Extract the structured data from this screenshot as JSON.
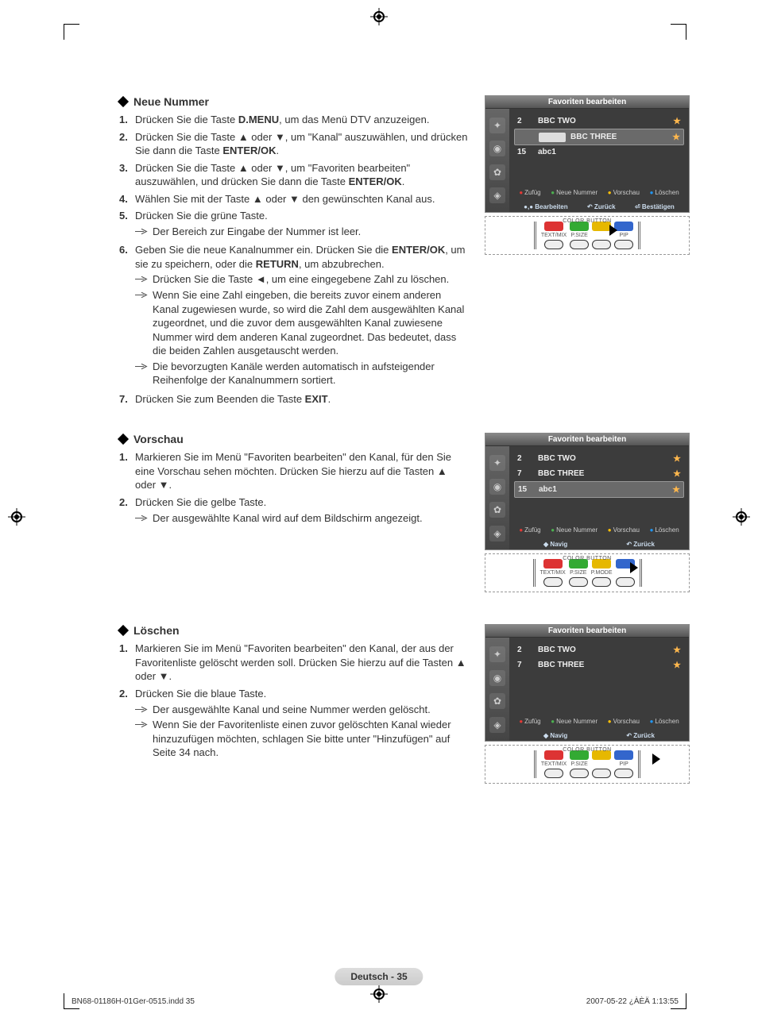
{
  "sections": {
    "s1": {
      "title": "Neue Nummer",
      "steps": {
        "1": "Drücken Sie die Taste <b>D.MENU</b>, um das Menü DTV anzuzeigen.",
        "2": "Drücken Sie die Taste ▲ oder ▼, um \"Kanal\" auszuwählen, und drücken Sie dann die Taste <b>ENTER/OK</b>.",
        "3": "Drücken Sie die Taste ▲ oder ▼, um \"Favoriten bearbeiten\" auszuwählen, und drücken Sie dann die Taste <b>ENTER/OK</b>.",
        "4": "Wählen Sie mit der Taste ▲ oder ▼ den gewünschten Kanal aus.",
        "5": "Drücken Sie die grüne Taste.",
        "5a": "Der Bereich zur Eingabe der Nummer ist leer.",
        "6": "Geben Sie die neue Kanalnummer ein. Drücken Sie die <b>ENTER/OK</b>, um sie zu speichern, oder die <b>RETURN</b>, um abzubrechen.",
        "6a": "Drücken Sie die Taste ◄, um eine eingegebene Zahl zu löschen.",
        "6b": "Wenn Sie eine Zahl eingeben, die bereits zuvor einem anderen Kanal zugewiesen wurde, so wird die Zahl dem ausgewählten Kanal zugeordnet, und die zuvor dem ausgewählten Kanal zuwiesene Nummer wird dem anderen Kanal zugeordnet. Das bedeutet, dass die beiden Zahlen ausgetauscht werden.",
        "6c": "Die bevorzugten Kanäle werden automatisch in aufsteigender Reihenfolge der Kanalnummern sortiert.",
        "7": "Drücken Sie zum Beenden die Taste <b>EXIT</b>."
      }
    },
    "s2": {
      "title": "Vorschau",
      "steps": {
        "1": "Markieren Sie im Menü \"Favoriten bearbeiten\" den Kanal, für den Sie eine Vorschau sehen möchten. Drücken Sie hierzu auf die Tasten ▲ oder ▼.",
        "2": "Drücken Sie die gelbe Taste.",
        "2a": "Der ausgewählte Kanal wird auf dem Bildschirm angezeigt."
      }
    },
    "s3": {
      "title": "Löschen",
      "steps": {
        "1": "Markieren Sie im Menü \"Favoriten bearbeiten\" den Kanal, der aus der Favoritenliste gelöscht werden soll. Drücken Sie hierzu auf die Tasten ▲ oder ▼.",
        "2": "Drücken Sie die blaue Taste.",
        "2a": "Der ausgewählte Kanal und seine Nummer werden gelöscht.",
        "2b": "Wenn Sie der Favoritenliste einen zuvor gelöschten Kanal wieder hinzuzufügen möchten, schlagen Sie bitte unter \"Hinzufügen\" auf Seite 34 nach."
      }
    }
  },
  "tv": {
    "title": "Favoriten bearbeiten",
    "legend": {
      "r": "Zufüg",
      "g": "Neue Nummer",
      "y": "Vorschau",
      "b": "Löschen"
    },
    "foot1": {
      "a": "●,● Bearbeiten",
      "b": "↶ Zurück",
      "c": "⏎ Bestätigen"
    },
    "foot2": {
      "a": "◆ Navig",
      "b": "↶ Zurück"
    },
    "screens": {
      "sc1_rows": [
        {
          "n": "2",
          "name": "BBC TWO",
          "star": true,
          "hl": false,
          "slot": false
        },
        {
          "n": "",
          "name": "BBC THREE",
          "star": true,
          "hl": true,
          "slot": true
        },
        {
          "n": "15",
          "name": "abc1",
          "star": false,
          "hl": false,
          "slot": false
        }
      ],
      "sc2_rows": [
        {
          "n": "2",
          "name": "BBC TWO",
          "star": true,
          "hl": false
        },
        {
          "n": "7",
          "name": "BBC THREE",
          "star": true,
          "hl": false
        },
        {
          "n": "15",
          "name": "abc1",
          "star": true,
          "hl": true
        }
      ],
      "sc3_rows": [
        {
          "n": "2",
          "name": "BBC TWO",
          "star": true,
          "hl": false
        },
        {
          "n": "7",
          "name": "BBC THREE",
          "star": true,
          "hl": false
        }
      ]
    }
  },
  "remote": {
    "color_button": "COLOR BUTTON",
    "keys": [
      "TEXT/MIX",
      "P.SIZE",
      "P.MODE",
      "PIP"
    ]
  },
  "page_label": "Deutsch - 35",
  "footer": {
    "left": "BN68-01186H-01Ger-0515.indd   35",
    "right": "2007-05-22   ¿ÀÈÄ 1:13:55"
  }
}
